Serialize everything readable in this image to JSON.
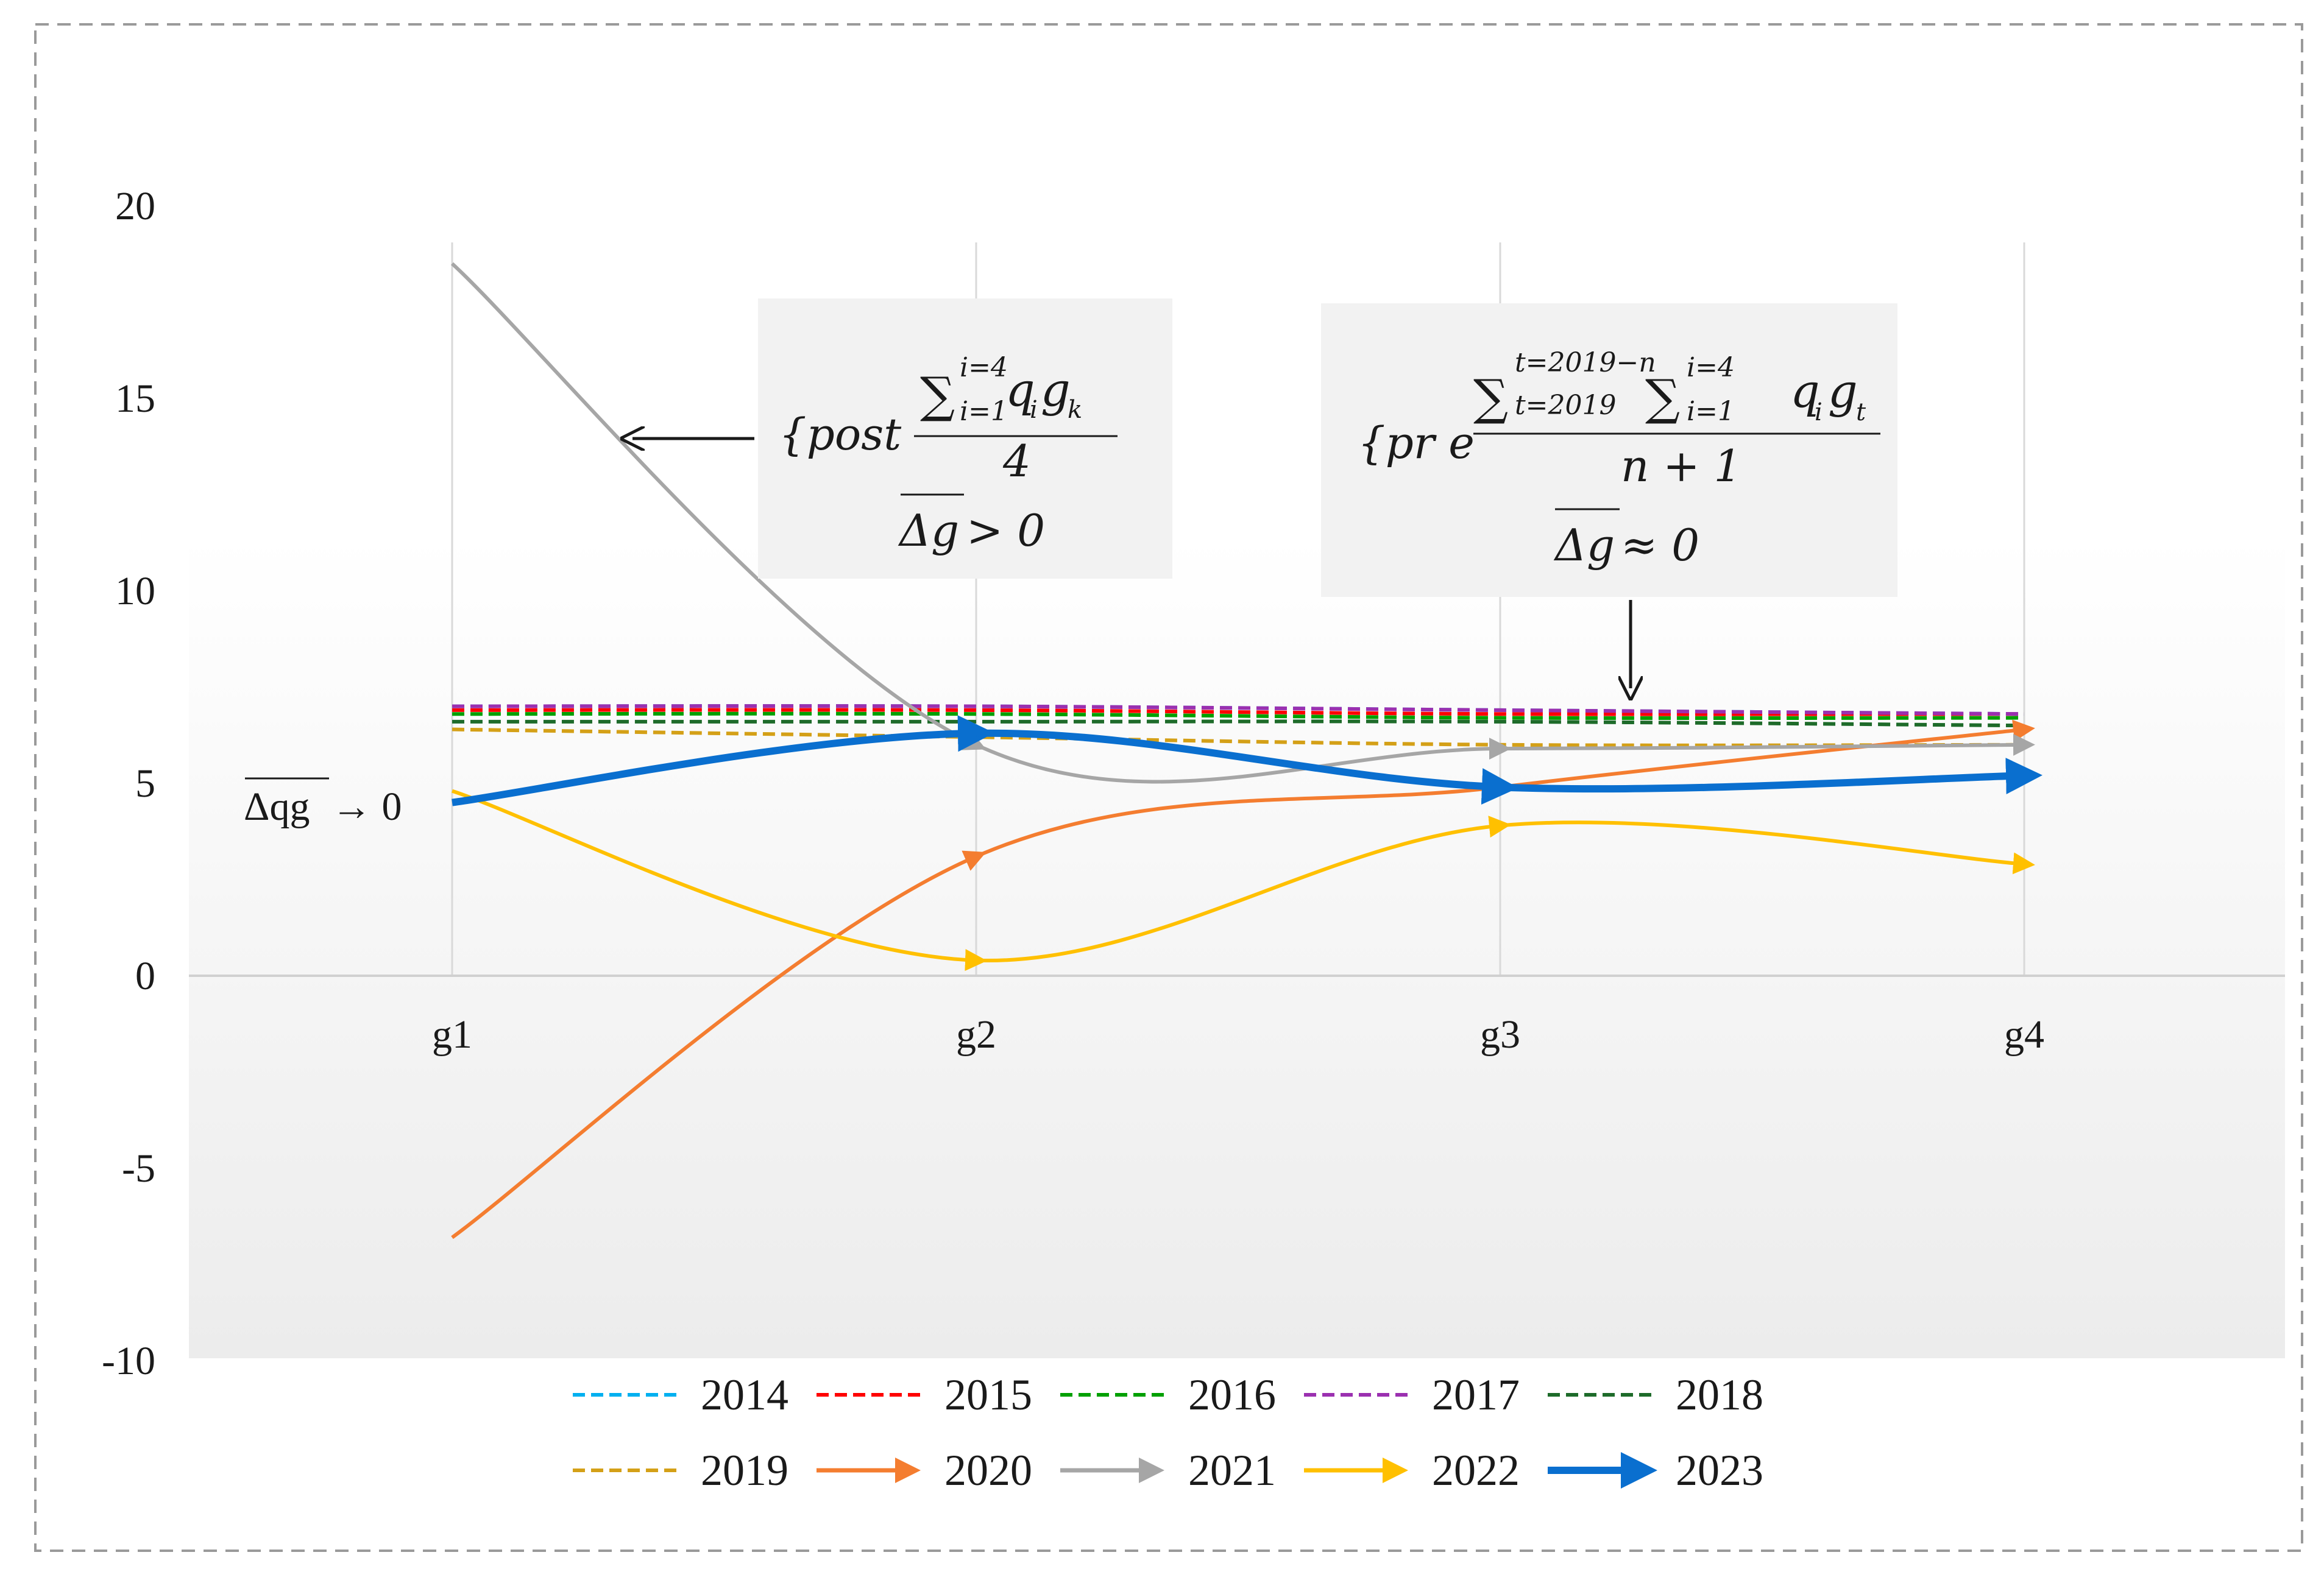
{
  "chart_data": {
    "type": "line",
    "title": "",
    "xlabel": "",
    "ylabel": "",
    "x": [
      "g1",
      "g2",
      "g3",
      "g4"
    ],
    "ylim": [
      -10,
      20
    ],
    "yticks": [
      "20",
      "15",
      "10",
      "5",
      "0",
      "-5",
      "-10"
    ],
    "series": [
      {
        "name": "2014",
        "values": [
          7.0,
          7.0,
          6.9,
          6.8
        ],
        "color": "#00b0f0",
        "style": "dashed"
      },
      {
        "name": "2015",
        "values": [
          6.9,
          6.9,
          6.8,
          6.8
        ],
        "color": "#ff0000",
        "style": "dashed"
      },
      {
        "name": "2016",
        "values": [
          6.8,
          6.8,
          6.7,
          6.7
        ],
        "color": "#00a000",
        "style": "dashed"
      },
      {
        "name": "2017",
        "values": [
          7.0,
          7.0,
          6.9,
          6.8
        ],
        "color": "#9b30b0",
        "style": "dashed"
      },
      {
        "name": "2018",
        "values": [
          6.6,
          6.6,
          6.6,
          6.5
        ],
        "color": "#1e6b2a",
        "style": "dashed"
      },
      {
        "name": "2019",
        "values": [
          6.4,
          6.2,
          6.0,
          6.0
        ],
        "color": "#d4a017",
        "style": "dashed"
      },
      {
        "name": "2020",
        "values": [
          -6.8,
          3.1,
          4.9,
          6.4
        ],
        "color": "#f47d30",
        "style": "arrow"
      },
      {
        "name": "2021",
        "values": [
          18.5,
          6.0,
          5.9,
          6.0
        ],
        "color": "#a6a6a6",
        "style": "arrow"
      },
      {
        "name": "2022",
        "values": [
          4.8,
          0.4,
          3.9,
          2.9
        ],
        "color": "#ffc000",
        "style": "arrow"
      },
      {
        "name": "2023",
        "values": [
          4.5,
          6.3,
          4.9,
          5.2
        ],
        "color": "#0a6fcf",
        "style": "arrow",
        "bold": true
      }
    ],
    "legend_position": "bottom",
    "annotations": {
      "post_box": {
        "prefix": "{post",
        "sum_sup": "i=4",
        "sum_sub": "i=1",
        "numerator_tail": "q",
        "q_sub": "i",
        "g": "g",
        "g_sub": "k",
        "denominator": "4",
        "bar_symbol": "Δg",
        "condition": " > 0"
      },
      "pre_box": {
        "prefix": "{pr e",
        "sum1_sup": "t=2019−n",
        "sum1_sub": "t=2019",
        "sum2_sup": "i=4",
        "sum2_sub": "i=1",
        "q": "q",
        "q_sub": "i",
        "g": "g",
        "g_sub": "t",
        "denominator": "n + 1",
        "bar_symbol": "Δg",
        "condition": " ≈ 0"
      },
      "left_label": {
        "bar_symbol": "Δqg",
        "tail": " → 0"
      }
    }
  }
}
